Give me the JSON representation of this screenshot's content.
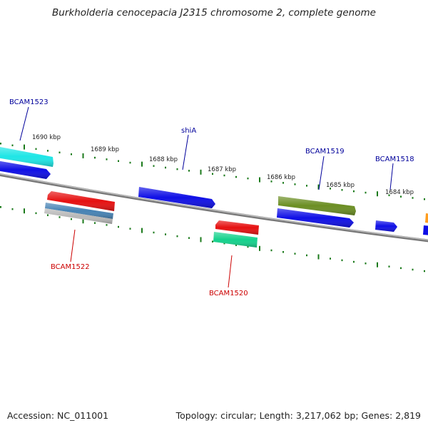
{
  "title": "Burkholderia cenocepacia J2315 chromosome 2, complete genome",
  "footer": {
    "accession": "Accession: NC_011001",
    "summary": "Topology: circular; Length: 3,217,062 bp; Genes: 2,819"
  },
  "ruler": {
    "labels": [
      "1690 kbp",
      "1689 kbp",
      "1688 kbp",
      "1687 kbp",
      "1686 kbp",
      "1685 kbp",
      "1684 kbp"
    ]
  },
  "colors": {
    "backbone": "#888888",
    "plus_label": "#00009b",
    "minus_label": "#cc0000",
    "tick": "#1b7a1b",
    "blue": "#0f0fe6",
    "cyan": "#1ee6e6",
    "red": "#e61010",
    "green_teal": "#14d28c",
    "olive": "#6b8e23",
    "steelblue": "#4682b4",
    "silver": "#b8b8b8",
    "orange": "#ff9d1e"
  },
  "features": {
    "labels": [
      {
        "name": "BCAM1523",
        "strand": "plus"
      },
      {
        "name": "shiA",
        "strand": "plus"
      },
      {
        "name": "BCAM1519",
        "strand": "plus"
      },
      {
        "name": "BCAM1518",
        "strand": "plus"
      },
      {
        "name": "BCAM1522",
        "strand": "minus"
      },
      {
        "name": "BCAM1520",
        "strand": "minus"
      }
    ]
  }
}
